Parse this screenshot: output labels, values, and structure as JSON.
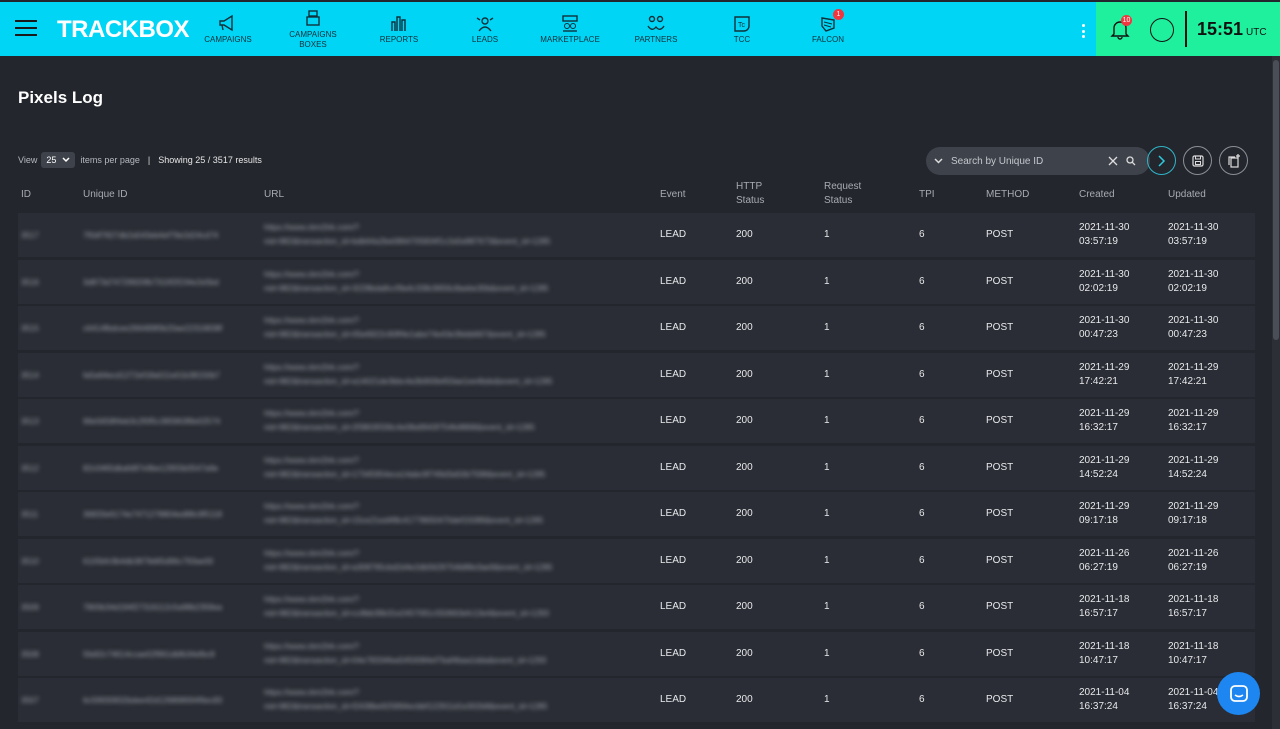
{
  "app": {
    "logo": "TRACKBOX",
    "nav": [
      {
        "label": "CAMPAIGNS",
        "icon": "megaphone-icon"
      },
      {
        "label": "CAMPAIGNS BOXES",
        "icon": "boxes-icon"
      },
      {
        "label": "REPORTS",
        "icon": "bar-chart-icon"
      },
      {
        "label": "LEADS",
        "icon": "leads-icon"
      },
      {
        "label": "MARKETPLACE",
        "icon": "marketplace-icon"
      },
      {
        "label": "PARTNERS",
        "icon": "partners-icon"
      },
      {
        "label": "TCC",
        "icon": "tcc-icon"
      },
      {
        "label": "FALCON",
        "icon": "falcon-icon",
        "badge": "1"
      }
    ],
    "notifications": "10",
    "time": "15:51",
    "tz": "UTC",
    "colors": {
      "header": "#00d5f5",
      "status_area": "#1ff09e",
      "badge": "#f0363f"
    }
  },
  "page": {
    "title": "Pixels Log"
  },
  "pager": {
    "view": "View",
    "per_page": "25",
    "items_label": "items per page",
    "sep": "|",
    "showing": "Showing 25 / 3517 results"
  },
  "search": {
    "placeholder": "Search by Unique ID"
  },
  "table": {
    "headers": [
      "ID",
      "Unique ID",
      "URL",
      "Event",
      "HTTP Status",
      "Request Status",
      "TPI",
      "METHOD",
      "Created",
      "Updated"
    ],
    "rows": [
      {
        "id": "3517",
        "uid": "7f0df7827db2a543eb4ef79e2d24cd74",
        "url1": "https://www.ckm2trk.com/?",
        "url2": "nid=982&transaction_id=bdb64a2be0864705834f1c2a5e887673&event_id=1285",
        "event": "LEAD",
        "http": "200",
        "req": "1",
        "tpi": "6",
        "method": "POST",
        "created": [
          "2021-11-30",
          "03:57:19"
        ],
        "updated": [
          "2021-11-30",
          "03:57:19"
        ]
      },
      {
        "id": "3516",
        "uid": "3d873d74729920fb7310f2f234e2e5bd",
        "url1": "https://www.ckm2trk.com/?",
        "url2": "nid=982&transaction_id=3228bda8ccf9a4c338c9656c8aebe30b&event_id=1285",
        "event": "LEAD",
        "http": "200",
        "req": "1",
        "tpi": "6",
        "method": "POST",
        "created": [
          "2021-11-30",
          "02:02:19"
        ],
        "updated": [
          "2021-11-30",
          "02:02:19"
        ]
      },
      {
        "id": "3515",
        "uid": "c6414fbdcee266489f0b20ae22316838f",
        "url1": "https://www.ckm2trk.com/?",
        "url2": "nid=982&transaction_id=05e6922c90ff4e1abe74e43e3febb667&event_id=1285",
        "event": "LEAD",
        "http": "200",
        "req": "1",
        "tpi": "6",
        "method": "POST",
        "created": [
          "2021-11-30",
          "00:47:23"
        ],
        "updated": [
          "2021-11-30",
          "00:47:23"
        ]
      },
      {
        "id": "3514",
        "uid": "fa5a64ecd1272ef18a011e01b38150b7",
        "url1": "https://www.ckm2trk.com/?",
        "url2": "nid=982&transaction_id=a14021de3bbc4a3b900b450ae1ee4bde&event_id=1285",
        "event": "LEAD",
        "http": "200",
        "req": "1",
        "tpi": "6",
        "method": "POST",
        "created": [
          "2021-11-29",
          "17:42:21"
        ],
        "updated": [
          "2021-11-29",
          "17:42:21"
        ]
      },
      {
        "id": "3513",
        "uid": "96e5658f4eb3c2f0f5c395963f8e02574",
        "url1": "https://www.ckm2trk.com/?",
        "url2": "nid=982&transaction_id=2f3803f336c4e08a9943f754fe8868&event_id=1285",
        "event": "LEAD",
        "http": "200",
        "req": "1",
        "tpi": "6",
        "method": "POST",
        "created": [
          "2021-11-29",
          "16:32:17"
        ],
        "updated": [
          "2021-11-29",
          "16:32:17"
        ]
      },
      {
        "id": "3512",
        "uid": "82c0465dbafd87e9be12955b0547a9e",
        "url1": "https://www.ckm2trk.com/?",
        "url2": "nid=982&transaction_id=17345954eca14abc9f749d3a50b7598&event_id=1285",
        "event": "LEAD",
        "http": "200",
        "req": "1",
        "tpi": "6",
        "method": "POST",
        "created": [
          "2021-11-29",
          "14:52:24"
        ],
        "updated": [
          "2021-11-29",
          "14:52:24"
        ]
      },
      {
        "id": "3511",
        "uid": "36833e6174e7471278804ed88c9f5118",
        "url1": "https://www.ckm2trk.com/?",
        "url2": "nid=982&transaction_id=15ce21ed4f8c41778650470def15089&event_id=1285",
        "event": "LEAD",
        "http": "200",
        "req": "1",
        "tpi": "6",
        "method": "POST",
        "created": [
          "2021-11-29",
          "09:17:18"
        ],
        "updated": [
          "2021-11-29",
          "09:17:18"
        ]
      },
      {
        "id": "3510",
        "uid": "6105bfc9b4db3879d65d96c793ae00",
        "url1": "https://www.ckm2trk.com/?",
        "url2": "nid=982&transaction_id=a308795cbd2d4e2db5629754b88e3ae9&event_id=1285",
        "event": "LEAD",
        "http": "200",
        "req": "1",
        "tpi": "6",
        "method": "POST",
        "created": [
          "2021-11-26",
          "06:27:19"
        ],
        "updated": [
          "2021-11-26",
          "06:27:19"
        ]
      },
      {
        "id": "3509",
        "uid": "7800b34d194f27316112c5a98b2358ea",
        "url1": "https://www.ckm2trk.com/?",
        "url2": "nid=982&transaction_id=cc8bb39b31e2457091c550663efc13e4&event_id=1293",
        "event": "LEAD",
        "http": "200",
        "req": "1",
        "tpi": "6",
        "method": "POST",
        "created": [
          "2021-11-18",
          "16:57:17"
        ],
        "updated": [
          "2021-11-18",
          "16:57:17"
        ]
      },
      {
        "id": "3508",
        "uid": "5fa92c74614ccae02f961dbfb34efbc8",
        "url1": "https://www.ckm2trk.com/?",
        "url2": "nid=982&transaction_id=04e78334fea5450084ef7baf4baa1dda&event_id=1293",
        "event": "LEAD",
        "http": "200",
        "req": "1",
        "tpi": "6",
        "method": "POST",
        "created": [
          "2021-11-18",
          "10:47:17"
        ],
        "updated": [
          "2021-11-18",
          "10:47:17"
        ]
      },
      {
        "id": "3507",
        "uid": "6c59930832bdee42d126868694f6ec83",
        "url1": "https://www.ckm2trk.com/?",
        "url2": "nid=982&transaction_id=f2438be925894ecbbf122911d1e302b8&event_id=1285",
        "event": "LEAD",
        "http": "200",
        "req": "1",
        "tpi": "6",
        "method": "POST",
        "created": [
          "2021-11-04",
          "16:37:24"
        ],
        "updated": [
          "2021-11-04",
          "16:37:24"
        ]
      }
    ]
  }
}
